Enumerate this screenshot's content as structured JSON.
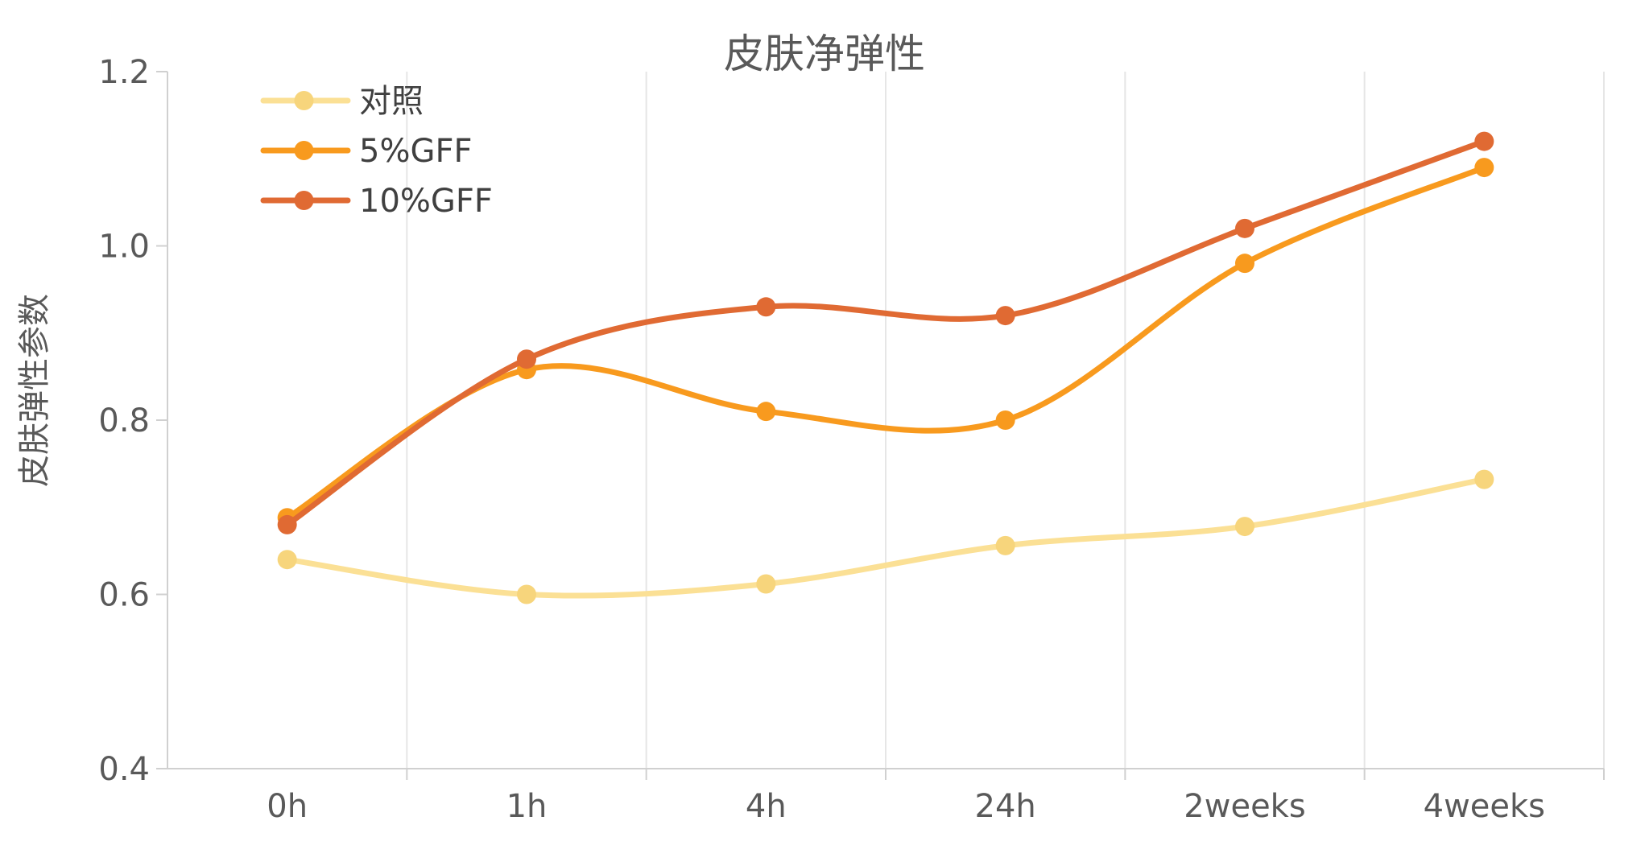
{
  "chart_data": {
    "type": "line",
    "title": "皮肤净弹性",
    "xlabel": "",
    "ylabel": "皮肤弹性参数",
    "categories": [
      "0h",
      "1h",
      "4h",
      "24h",
      "2weeks",
      "4weeks"
    ],
    "ylim": [
      0.4,
      1.2
    ],
    "yticks": [
      "0.4",
      "0.6",
      "0.8",
      "1.0",
      "1.2"
    ],
    "grid": "vertical",
    "legend_position": "top-left",
    "smooth": true,
    "series": [
      {
        "name": "对照",
        "color": "#FBE095",
        "marker_color": "#F7D57C",
        "values": [
          0.64,
          0.6,
          0.612,
          0.656,
          0.678,
          0.732
        ]
      },
      {
        "name": "5%GFF",
        "color": "#F89A1E",
        "marker_color": "#F89A1E",
        "values": [
          0.688,
          0.858,
          0.81,
          0.8,
          0.98,
          1.09
        ]
      },
      {
        "name": "10%GFF",
        "color": "#E06A33",
        "marker_color": "#E06A33",
        "values": [
          0.68,
          0.87,
          0.93,
          0.92,
          1.02,
          1.12
        ]
      }
    ]
  }
}
